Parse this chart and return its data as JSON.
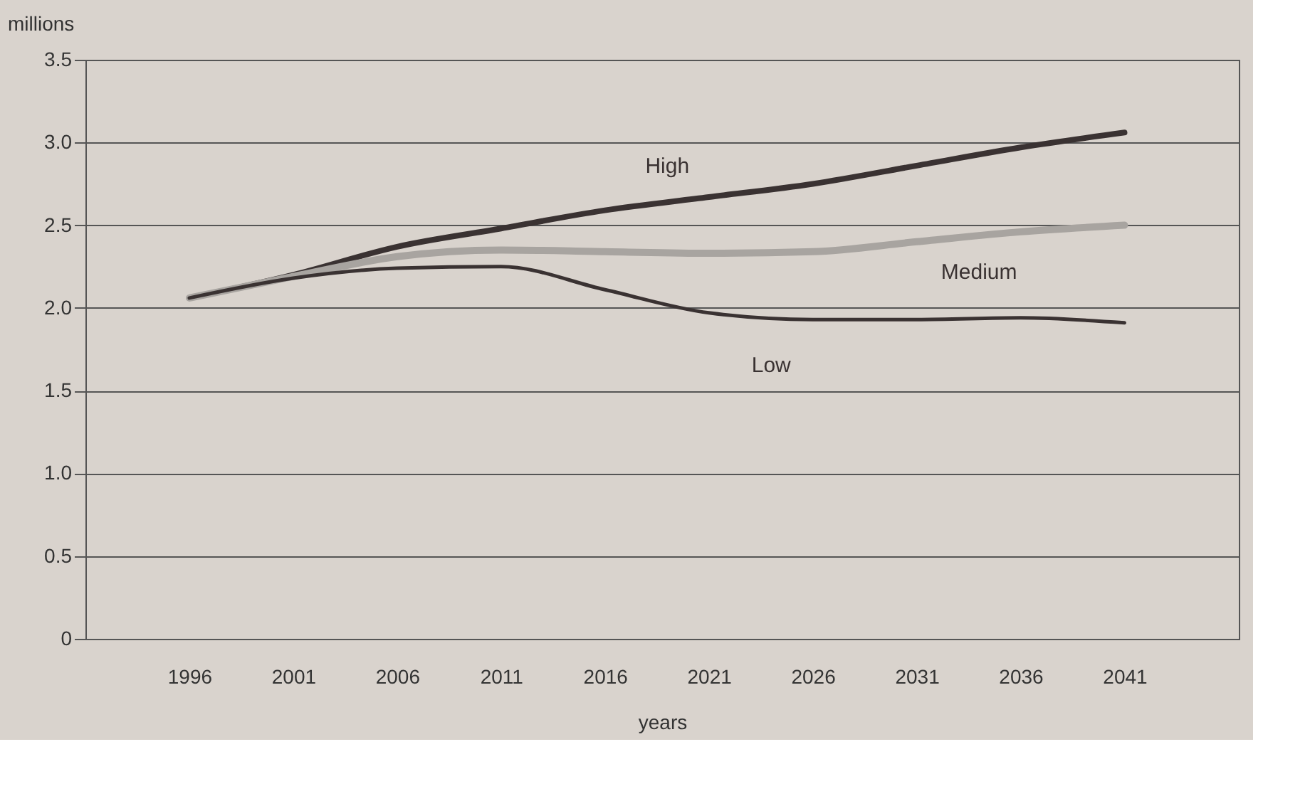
{
  "chart_data": {
    "type": "line",
    "ylabel": "millions",
    "xlabel": "years",
    "x": [
      1996,
      2001,
      2006,
      2011,
      2016,
      2021,
      2026,
      2031,
      2036,
      2041
    ],
    "series": [
      {
        "name": "High",
        "color": "#3a3232",
        "values": [
          2.06,
          2.2,
          2.37,
          2.48,
          2.59,
          2.67,
          2.75,
          2.86,
          2.97,
          3.06
        ]
      },
      {
        "name": "Medium",
        "color": "#a8a4a0",
        "values": [
          2.06,
          2.19,
          2.31,
          2.35,
          2.34,
          2.33,
          2.34,
          2.4,
          2.46,
          2.5
        ]
      },
      {
        "name": "Low",
        "color": "#3a3232",
        "values": [
          2.06,
          2.18,
          2.24,
          2.25,
          2.11,
          1.97,
          1.93,
          1.93,
          1.94,
          1.91
        ]
      }
    ],
    "xlim": [
      1991,
      2046.5
    ],
    "xticks": [
      1996,
      2001,
      2006,
      2011,
      2016,
      2021,
      2026,
      2031,
      2036,
      2041
    ],
    "ylim": [
      0,
      3.5
    ],
    "yticks": [
      0,
      0.5,
      {
        "value": 1,
        "label": "1.0"
      },
      1.5,
      {
        "value": 2,
        "label": "2.0"
      },
      2.5,
      {
        "value": 3,
        "label": "3.0"
      },
      3.5
    ],
    "grid": "y",
    "legend": false,
    "line_style": "solid",
    "marker": "none"
  }
}
